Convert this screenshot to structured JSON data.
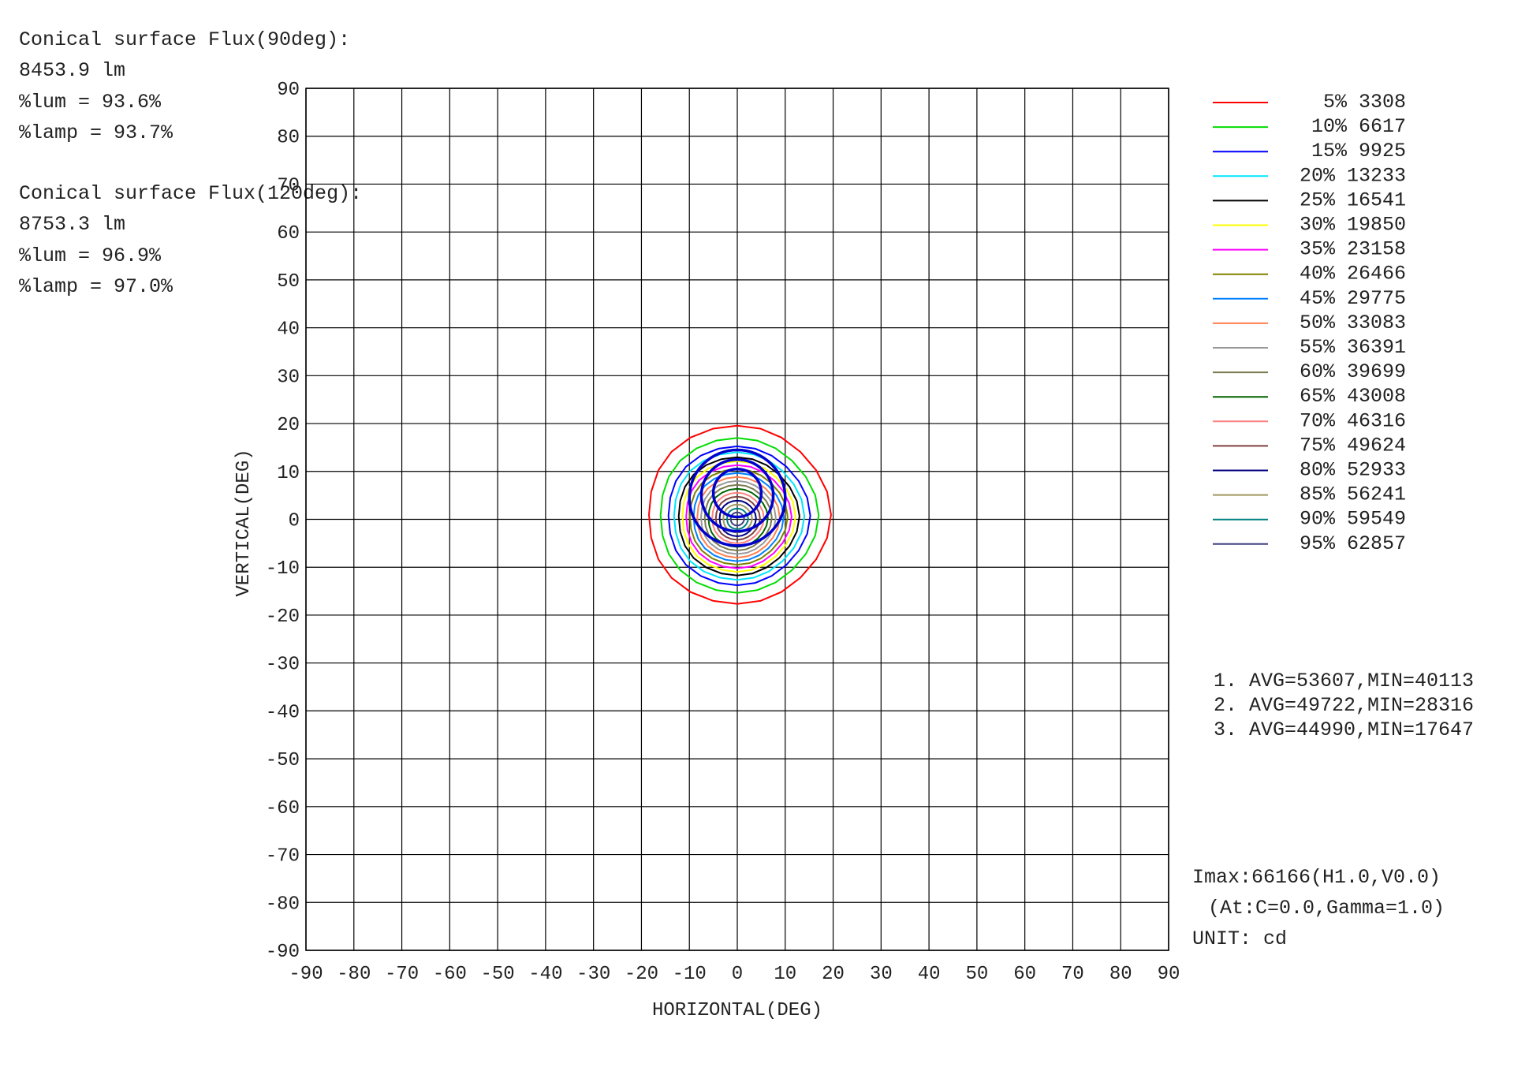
{
  "flux_info": [
    {
      "title": "Conical surface Flux(90deg):",
      "flux": "8453.9 lm",
      "lum": "%lum = 93.6%",
      "lamp": "%lamp = 93.7%"
    },
    {
      "title": "Conical surface Flux(120deg):",
      "flux": "8753.3 lm",
      "lum": "%lum = 96.9%",
      "lamp": "%lamp = 97.0%"
    }
  ],
  "averages": [
    "1. AVG=53607,MIN=40113",
    "2. AVG=49722,MIN=28316",
    "3. AVG=44990,MIN=17647"
  ],
  "imax": {
    "line1": "Imax:66166(H1.0,V0.0)",
    "line2": "(At:C=0.0,Gamma=1.0)",
    "unit": "UNIT: cd"
  },
  "chart_data": {
    "type": "contour",
    "xlabel": "HORIZONTAL(DEG)",
    "ylabel": "VERTICAL(DEG)",
    "xlim": [
      -90,
      90
    ],
    "ylim": [
      -90,
      90
    ],
    "xticks": [
      -90,
      -80,
      -70,
      -60,
      -50,
      -40,
      -30,
      -20,
      -10,
      0,
      10,
      20,
      30,
      40,
      50,
      60,
      70,
      80,
      90
    ],
    "yticks": [
      90,
      80,
      70,
      60,
      50,
      40,
      30,
      20,
      10,
      0,
      -10,
      -20,
      -30,
      -40,
      -50,
      -60,
      -70,
      -80,
      -90
    ],
    "grid": true,
    "legend_position": "right",
    "center": [
      0,
      0
    ],
    "levels": [
      {
        "label": "5%",
        "value": 3308,
        "color": "#ff0000",
        "radius": 19
      },
      {
        "label": "10%",
        "value": 6617,
        "color": "#00dd00",
        "radius": 16.5
      },
      {
        "label": "15%",
        "value": 9925,
        "color": "#0000ff",
        "radius": 14.8
      },
      {
        "label": "20%",
        "value": 13233,
        "color": "#00e5ff",
        "radius": 13.6
      },
      {
        "label": "25%",
        "value": 16541,
        "color": "#000000",
        "radius": 12.6
      },
      {
        "label": "30%",
        "value": 19850,
        "color": "#ffff00",
        "radius": 11.8
      },
      {
        "label": "35%",
        "value": 23158,
        "color": "#ff00ff",
        "radius": 11
      },
      {
        "label": "40%",
        "value": 26466,
        "color": "#808000",
        "radius": 10.2
      },
      {
        "label": "45%",
        "value": 29775,
        "color": "#0080ff",
        "radius": 9.4
      },
      {
        "label": "50%",
        "value": 33083,
        "color": "#ff7f50",
        "radius": 8.6
      },
      {
        "label": "55%",
        "value": 36391,
        "color": "#999999",
        "radius": 7.8
      },
      {
        "label": "60%",
        "value": 39699,
        "color": "#7a7a50",
        "radius": 7
      },
      {
        "label": "65%",
        "value": 43008,
        "color": "#006400",
        "radius": 6.2
      },
      {
        "label": "70%",
        "value": 46316,
        "color": "#ff8080",
        "radius": 5.4
      },
      {
        "label": "75%",
        "value": 49624,
        "color": "#804040",
        "radius": 4.6
      },
      {
        "label": "80%",
        "value": 52933,
        "color": "#000080",
        "radius": 3.8
      },
      {
        "label": "85%",
        "value": 56241,
        "color": "#a09860",
        "radius": 3
      },
      {
        "label": "90%",
        "value": 59549,
        "color": "#008080",
        "radius": 2.2
      },
      {
        "label": "95%",
        "value": 62857,
        "color": "#404080",
        "radius": 1.4
      }
    ],
    "average_circles": [
      {
        "label": "1",
        "radius": 5,
        "color": "#0000cc"
      },
      {
        "label": "2",
        "radius": 7.5,
        "color": "#0000cc"
      },
      {
        "label": "3",
        "radius": 10,
        "color": "#0000cc"
      }
    ]
  }
}
